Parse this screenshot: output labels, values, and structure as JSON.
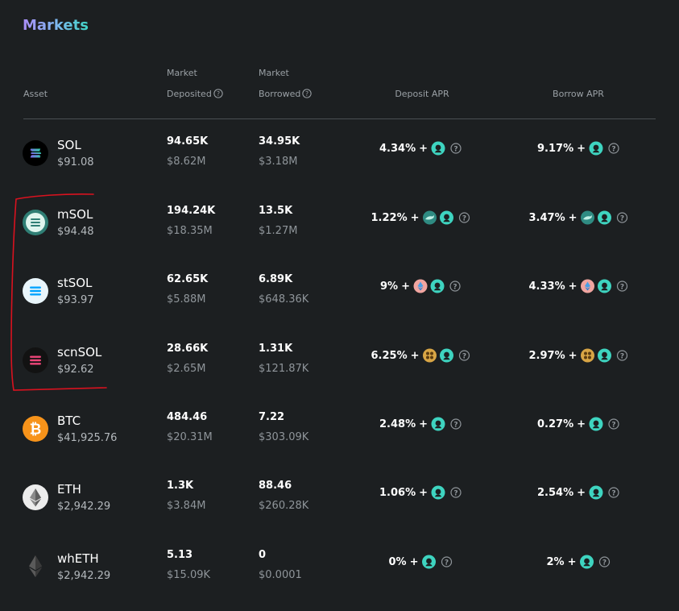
{
  "page_title": "Markets",
  "headers": {
    "asset": "Asset",
    "deposited_line1": "Market",
    "deposited_line2": "Deposited",
    "borrowed_line1": "Market",
    "borrowed_line2": "Borrowed",
    "deposit_apr": "Deposit APR",
    "borrow_apr": "Borrow APR"
  },
  "plus_sign": "+",
  "rows": [
    {
      "name": "SOL",
      "price": "$91.08",
      "dep_amt": "94.65K",
      "dep_usd": "$8.62M",
      "bor_amt": "34.95K",
      "bor_usd": "$3.18M",
      "dep_apr": "4.34%",
      "bor_apr": "9.17%",
      "icon": "sol-icon",
      "extra": "none"
    },
    {
      "name": "mSOL",
      "price": "$94.48",
      "dep_amt": "194.24K",
      "dep_usd": "$18.35M",
      "bor_amt": "13.5K",
      "bor_usd": "$1.27M",
      "dep_apr": "1.22%",
      "bor_apr": "3.47%",
      "icon": "msol-icon",
      "extra": "marinade-icon"
    },
    {
      "name": "stSOL",
      "price": "$93.97",
      "dep_amt": "62.65K",
      "dep_usd": "$5.88M",
      "bor_amt": "6.89K",
      "bor_usd": "$648.36K",
      "dep_apr": "9%",
      "bor_apr": "4.33%",
      "icon": "stsol-icon",
      "extra": "lido-icon"
    },
    {
      "name": "scnSOL",
      "price": "$92.62",
      "dep_amt": "28.66K",
      "dep_usd": "$2.65M",
      "bor_amt": "1.31K",
      "bor_usd": "$121.87K",
      "dep_apr": "6.25%",
      "bor_apr": "2.97%",
      "icon": "scnsol-icon",
      "extra": "socean-icon"
    },
    {
      "name": "BTC",
      "price": "$41,925.76",
      "dep_amt": "484.46",
      "dep_usd": "$20.31M",
      "bor_amt": "7.22",
      "bor_usd": "$303.09K",
      "dep_apr": "2.48%",
      "bor_apr": "0.27%",
      "icon": "btc-icon",
      "extra": "none"
    },
    {
      "name": "ETH",
      "price": "$2,942.29",
      "dep_amt": "1.3K",
      "dep_usd": "$3.84M",
      "bor_amt": "88.46",
      "bor_usd": "$260.28K",
      "dep_apr": "1.06%",
      "bor_apr": "2.54%",
      "icon": "eth-icon",
      "extra": "none"
    },
    {
      "name": "whETH",
      "price": "$2,942.29",
      "dep_amt": "5.13",
      "dep_usd": "$15.09K",
      "bor_amt": "0",
      "bor_usd": "$0.0001",
      "dep_apr": "0%",
      "bor_apr": "2%",
      "icon": "wheth-icon",
      "extra": "none"
    }
  ],
  "colors": {
    "background": "#1c1f21",
    "reward_token": "#3ed4c0",
    "annotation": "#d9121f",
    "muted_text": "#8f959a"
  }
}
